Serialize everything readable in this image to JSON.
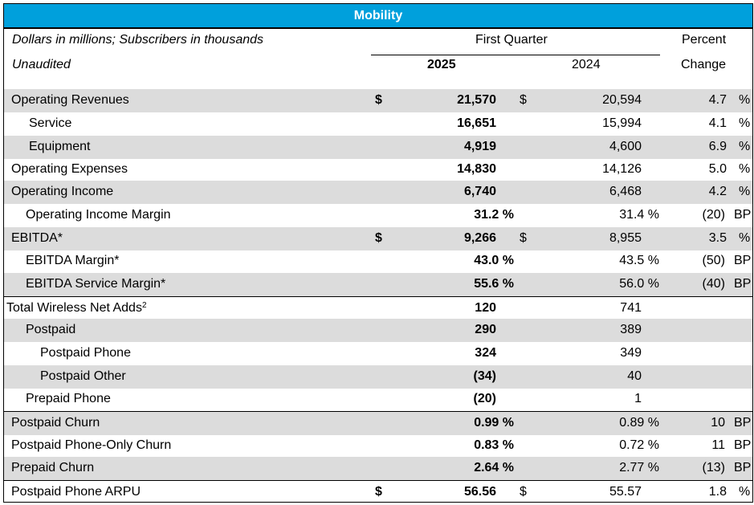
{
  "title": "Mobility",
  "header": {
    "line1_left": "Dollars in millions; Subscribers in thousands",
    "line2_left": "Unaudited",
    "period": "First Quarter",
    "col_2025": "2025",
    "col_2024": "2024",
    "change_line1": "Percent",
    "change_line2": "Change"
  },
  "rows": [
    {
      "label": "Operating Revenues",
      "d25": "$",
      "v25": "21,570",
      "d24": "$",
      "v24": "20,594",
      "chg": "4.7",
      "unit": "%"
    },
    {
      "label": "Service",
      "v25": "16,651",
      "v24": "15,994",
      "chg": "4.1",
      "unit": "%"
    },
    {
      "label": "Equipment",
      "v25": "4,919",
      "v24": "4,600",
      "chg": "6.9",
      "unit": "%"
    },
    {
      "label": "Operating Expenses",
      "v25": "14,830",
      "v24": "14,126",
      "chg": "5.0",
      "unit": "%"
    },
    {
      "label": "Operating Income",
      "v25": "6,740",
      "v24": "6,468",
      "chg": "4.2",
      "unit": "%"
    },
    {
      "label": "Operating Income Margin",
      "v25": "31.2 %",
      "v24": "31.4 %",
      "chg": "(20)",
      "unit": "BP"
    },
    {
      "label": "EBITDA*",
      "d25": "$",
      "v25": "9,266",
      "d24": "$",
      "v24": "8,955",
      "chg": "3.5",
      "unit": "%"
    },
    {
      "label": "EBITDA Margin*",
      "v25": "43.0 %",
      "v24": "43.5 %",
      "chg": "(50)",
      "unit": "BP"
    },
    {
      "label": "EBITDA Service Margin*",
      "v25": "55.6 %",
      "v24": "56.0 %",
      "chg": "(40)",
      "unit": "BP"
    },
    {
      "label": "Total Wireless Net Adds",
      "sup": "2",
      "v25": "120",
      "v24": "741"
    },
    {
      "label": "Postpaid",
      "v25": "290",
      "v24": "389"
    },
    {
      "label": "Postpaid Phone",
      "v25": "324",
      "v24": "349"
    },
    {
      "label": "Postpaid Other",
      "v25": "(34)",
      "v24": "40"
    },
    {
      "label": "Prepaid Phone",
      "v25": "(20)",
      "v24": "1"
    },
    {
      "label": "Postpaid Churn",
      "v25": "0.99 %",
      "v24": "0.89 %",
      "chg": "10",
      "unit": "BP"
    },
    {
      "label": "Postpaid Phone-Only Churn",
      "v25": "0.83 %",
      "v24": "0.72 %",
      "chg": "11",
      "unit": "BP"
    },
    {
      "label": "Prepaid Churn",
      "v25": "2.64 %",
      "v24": "2.77 %",
      "chg": "(13)",
      "unit": "BP"
    },
    {
      "label": "Postpaid Phone ARPU",
      "d25": "$",
      "v25": "56.56",
      "d24": "$",
      "v24": "55.57",
      "chg": "1.8",
      "unit": "%"
    }
  ]
}
